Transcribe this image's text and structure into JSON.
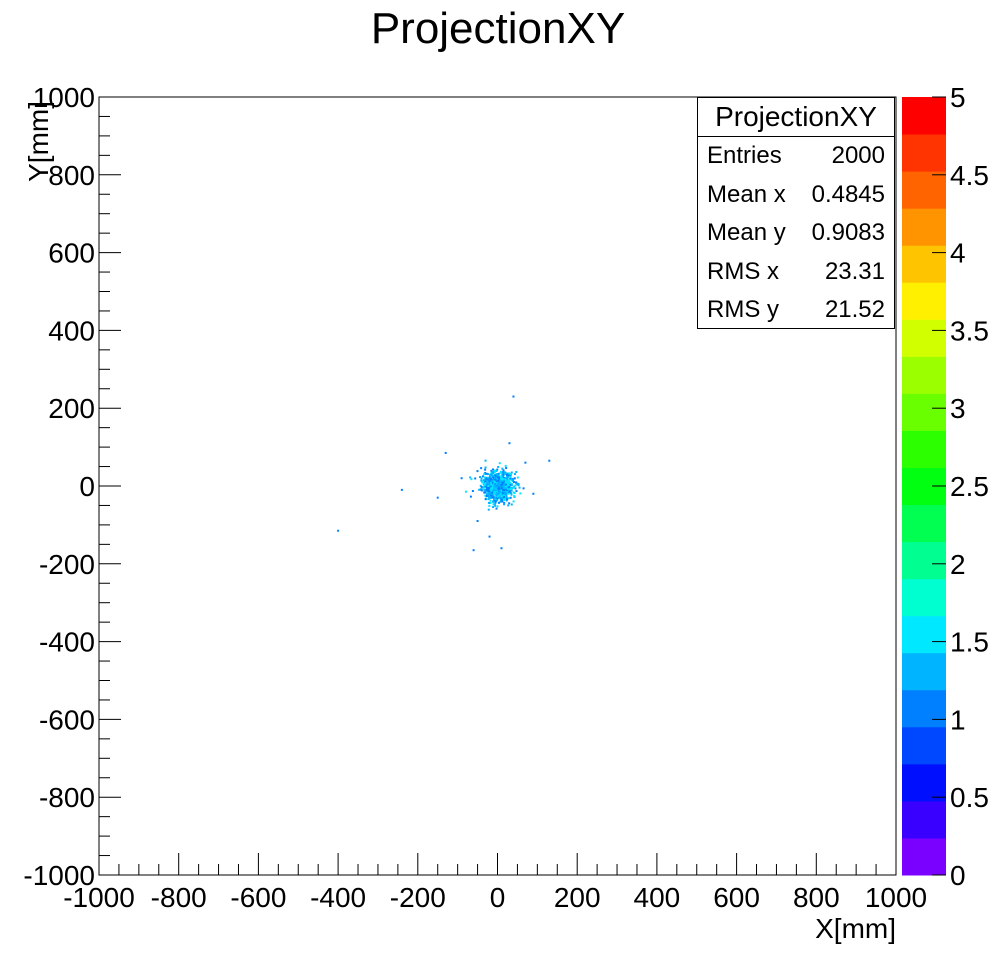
{
  "page_title": "ProjectionXY",
  "stats_box": {
    "title": "ProjectionXY",
    "rows": [
      {
        "label": "Entries",
        "value": "2000"
      },
      {
        "label": "Mean x",
        "value": "0.4845"
      },
      {
        "label": "Mean y",
        "value": "0.9083"
      },
      {
        "label": "RMS x",
        "value": "23.31"
      },
      {
        "label": "RMS y",
        "value": "21.52"
      }
    ]
  },
  "chart_data": {
    "type": "heatmap",
    "title": "ProjectionXY",
    "xlabel": "X[mm]",
    "ylabel": "Y[mm]",
    "xlim": [
      -1000,
      1000
    ],
    "ylim": [
      -1000,
      1000
    ],
    "x_ticks": [
      "-1000",
      "-800",
      "-600",
      "-400",
      "-200",
      "0",
      "200",
      "400",
      "600",
      "800",
      "1000"
    ],
    "y_ticks": [
      "-1000",
      "-800",
      "-600",
      "-400",
      "-200",
      "0",
      "200",
      "400",
      "600",
      "800",
      "1000"
    ],
    "colorbar": {
      "range": [
        0,
        5
      ],
      "ticks": [
        "0",
        "0.5",
        "1",
        "1.5",
        "2",
        "2.5",
        "3",
        "3.5",
        "4",
        "4.5",
        "5"
      ],
      "colors": [
        "#7a00ff",
        "#3a00ff",
        "#0010ff",
        "#0048ff",
        "#0080ff",
        "#00b4ff",
        "#00e8ff",
        "#00ffd0",
        "#00ff90",
        "#00ff50",
        "#00ff10",
        "#2cff00",
        "#6aff00",
        "#9cff00",
        "#d2ff00",
        "#fff000",
        "#ffc400",
        "#ff9400",
        "#ff6400",
        "#ff3400",
        "#ff0000"
      ]
    },
    "entries": 2000,
    "mean_x": 0.4845,
    "mean_y": 0.9083,
    "rms_x": 23.31,
    "rms_y": 21.52,
    "point_colors": [
      "#0080ff",
      "#00b4ff",
      "#00e8ff"
    ],
    "outliers": [
      [
        -400,
        -115
      ],
      [
        -240,
        -10
      ],
      [
        -130,
        85
      ],
      [
        -60,
        -165
      ],
      [
        -20,
        -130
      ],
      [
        40,
        230
      ],
      [
        130,
        65
      ],
      [
        10,
        -160
      ],
      [
        -90,
        20
      ],
      [
        70,
        60
      ],
      [
        30,
        110
      ],
      [
        -50,
        -90
      ],
      [
        90,
        -20
      ],
      [
        -150,
        -30
      ]
    ]
  }
}
